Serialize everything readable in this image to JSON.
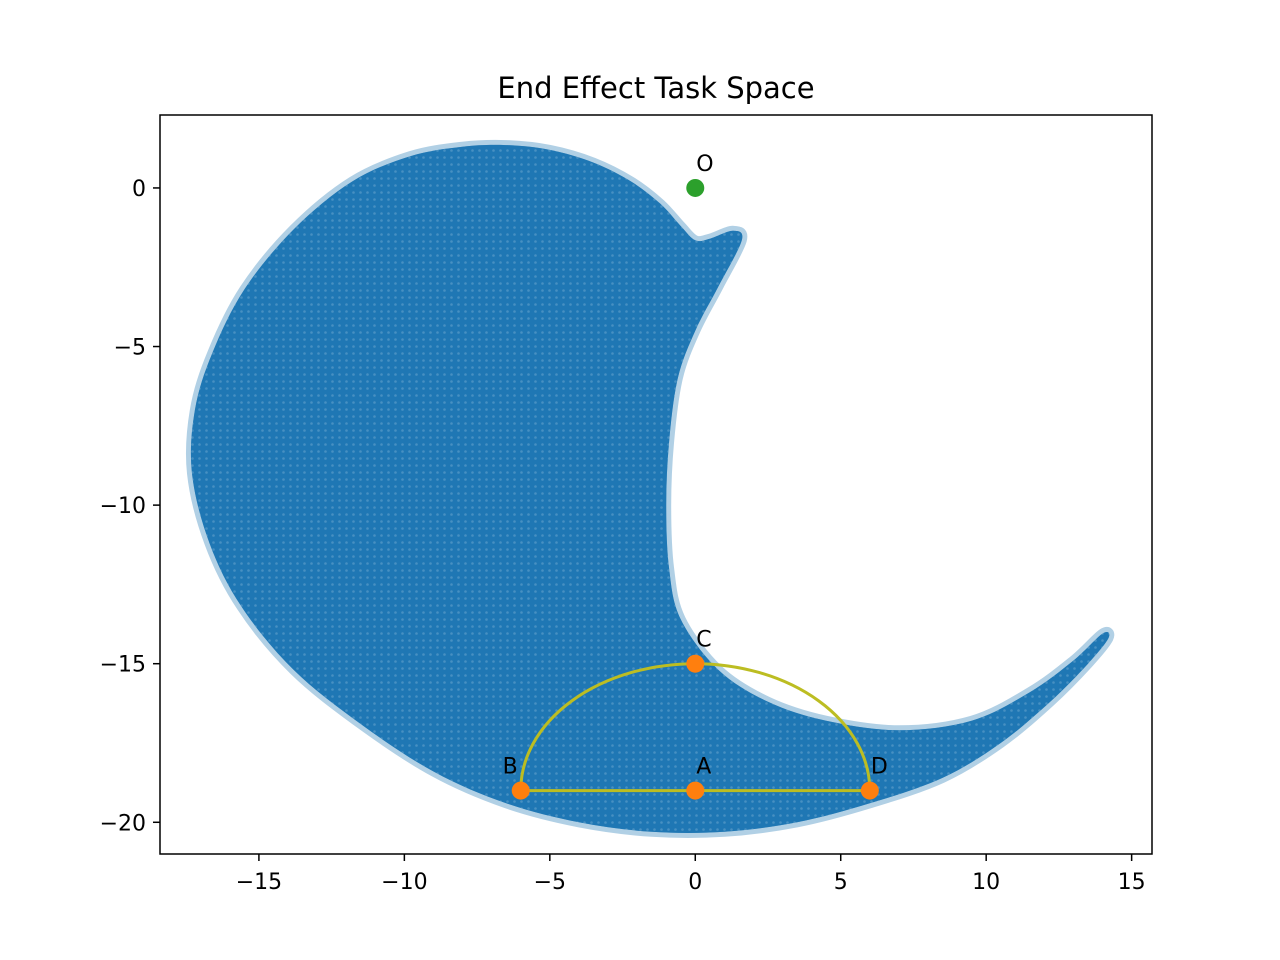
{
  "chart_data": {
    "type": "scatter",
    "title": "End Effect Task Space",
    "xlabel": "",
    "ylabel": "",
    "xlim": [
      -18.4,
      15.7
    ],
    "ylim": [
      -21.0,
      2.3
    ],
    "x_ticks": [
      -15,
      -10,
      -5,
      0,
      5,
      10,
      15
    ],
    "x_tick_labels": [
      "−15",
      "−10",
      "−5",
      "0",
      "5",
      "10",
      "15"
    ],
    "y_ticks": [
      0,
      -5,
      -10,
      -15,
      -20
    ],
    "y_tick_labels": [
      "0",
      "−5",
      "−10",
      "−15",
      "−20"
    ],
    "grid": false,
    "legend": "none",
    "colors": {
      "workspace": "#1f77b4",
      "points": "#ff7f0e",
      "origin": "#2ca02c",
      "path": "#bcbd22"
    },
    "workspace_region": {
      "name": "",
      "boundary": [
        [
          -0.5,
          -1.2
        ],
        [
          -1.2,
          -0.5
        ],
        [
          -2.2,
          0.2
        ],
        [
          -3.5,
          0.8
        ],
        [
          -5.0,
          1.2
        ],
        [
          -6.5,
          1.35
        ],
        [
          -8.0,
          1.3
        ],
        [
          -9.8,
          1.0
        ],
        [
          -11.8,
          0.2
        ],
        [
          -13.8,
          -1.3
        ],
        [
          -15.5,
          -3.2
        ],
        [
          -16.6,
          -5.2
        ],
        [
          -17.2,
          -7.0
        ],
        [
          -17.3,
          -9.0
        ],
        [
          -16.7,
          -11.2
        ],
        [
          -15.6,
          -13.2
        ],
        [
          -13.8,
          -15.2
        ],
        [
          -11.5,
          -16.9
        ],
        [
          -9.0,
          -18.4
        ],
        [
          -6.5,
          -19.4
        ],
        [
          -4.0,
          -20.0
        ],
        [
          -1.5,
          -20.3
        ],
        [
          1.0,
          -20.3
        ],
        [
          3.5,
          -20.0
        ],
        [
          6.0,
          -19.4
        ],
        [
          8.5,
          -18.6
        ],
        [
          10.5,
          -17.5
        ],
        [
          12.2,
          -16.2
        ],
        [
          13.5,
          -15.0
        ],
        [
          14.2,
          -14.2
        ],
        [
          14.0,
          -14.05
        ],
        [
          13.0,
          -14.9
        ],
        [
          11.5,
          -15.9
        ],
        [
          9.5,
          -16.8
        ],
        [
          7.0,
          -17.1
        ],
        [
          4.5,
          -16.8
        ],
        [
          2.5,
          -16.2
        ],
        [
          0.8,
          -15.2
        ],
        [
          -0.5,
          -13.6
        ],
        [
          -0.9,
          -12.0
        ],
        [
          -1.0,
          -10.0
        ],
        [
          -0.9,
          -8.0
        ],
        [
          -0.6,
          -6.0
        ],
        [
          0.0,
          -4.5
        ],
        [
          0.8,
          -3.1
        ],
        [
          1.6,
          -1.65
        ],
        [
          1.3,
          -1.35
        ],
        [
          0.5,
          -1.6
        ],
        [
          0.0,
          -1.65
        ]
      ]
    },
    "points": [
      {
        "label": "O",
        "x": 0,
        "y": 0,
        "color": "green"
      },
      {
        "label": "A",
        "x": 0,
        "y": -19,
        "color": "orange"
      },
      {
        "label": "B",
        "x": -6,
        "y": -19,
        "color": "orange"
      },
      {
        "label": "C",
        "x": 0,
        "y": -15,
        "color": "orange"
      },
      {
        "label": "D",
        "x": 6,
        "y": -19,
        "color": "orange"
      }
    ],
    "path": {
      "segment": {
        "from": [
          -6,
          -19
        ],
        "to": [
          6,
          -19
        ]
      },
      "arc": {
        "center": [
          0,
          -19
        ],
        "rx": 6,
        "ry": 4,
        "from_deg": 0,
        "to_deg": 180
      }
    }
  }
}
